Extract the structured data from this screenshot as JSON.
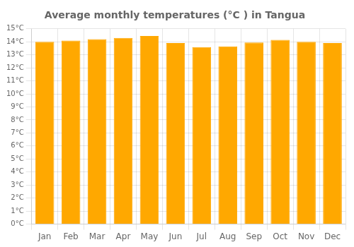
{
  "chart_data": {
    "type": "bar",
    "title": "Average monthly temperatures (°C ) in Tangua",
    "categories": [
      "Jan",
      "Feb",
      "Mar",
      "Apr",
      "May",
      "Jun",
      "Jul",
      "Aug",
      "Sep",
      "Oct",
      "Nov",
      "Dec"
    ],
    "values": [
      14.0,
      14.1,
      14.2,
      14.3,
      14.45,
      13.9,
      13.6,
      13.65,
      13.95,
      14.15,
      14.0,
      13.9
    ],
    "color": "#FFA800",
    "ylim": [
      0,
      15
    ],
    "yticks": [
      {
        "value": 0,
        "label": "0°C"
      },
      {
        "value": 1,
        "label": "1°C"
      },
      {
        "value": 2,
        "label": "2°C"
      },
      {
        "value": 3,
        "label": "3°C"
      },
      {
        "value": 4,
        "label": "4°C"
      },
      {
        "value": 5,
        "label": "5°C"
      },
      {
        "value": 6,
        "label": "6°C"
      },
      {
        "value": 7,
        "label": "7°C"
      },
      {
        "value": 8,
        "label": "8°C"
      },
      {
        "value": 9,
        "label": "9°C"
      },
      {
        "value": 10,
        "label": "10°C"
      },
      {
        "value": 11,
        "label": "11°C"
      },
      {
        "value": 12,
        "label": "12°C"
      },
      {
        "value": 13,
        "label": "13°C"
      },
      {
        "value": 14,
        "label": "14°C"
      },
      {
        "value": 15,
        "label": "15°C"
      }
    ],
    "grid": true
  }
}
